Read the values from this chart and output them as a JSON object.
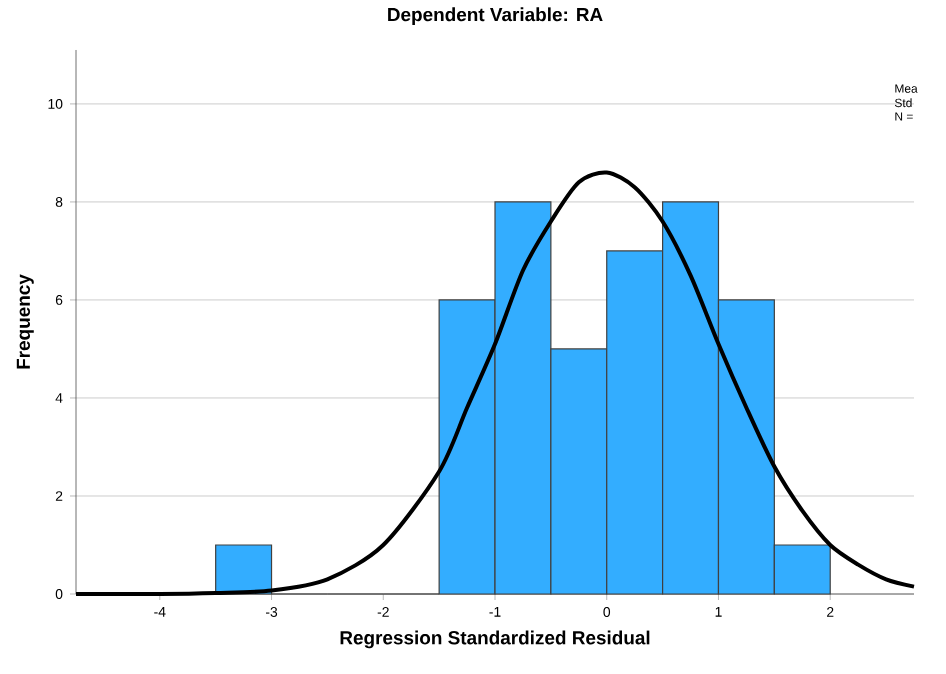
{
  "chart_data": {
    "type": "histogram",
    "title": "Dependent Variable: RA",
    "xlabel": "Regression Standardized Residual",
    "ylabel": "Frequency",
    "bins": [
      -3.5,
      -3,
      -2.5,
      -2,
      -1.5,
      -1,
      -0.5,
      0,
      0.5,
      1,
      1.5,
      2
    ],
    "values": [
      1,
      0,
      0,
      0,
      6,
      8,
      5,
      7,
      8,
      6,
      1
    ],
    "color": "#33adff",
    "series": [
      {
        "type": "line",
        "color": "#000000",
        "x": [
          -4.75,
          -4,
          -3.5,
          -3,
          -2.5,
          -2,
          -1.5,
          -1.25,
          -1,
          -0.75,
          -0.5,
          -0.25,
          0,
          0.25,
          0.5,
          0.75,
          1,
          1.25,
          1.5,
          1.75,
          2,
          2.25,
          2.5,
          2.75
        ],
        "values": [
          0,
          0,
          0.02,
          0.07,
          0.3,
          1.0,
          2.5,
          3.8,
          5.1,
          6.6,
          7.6,
          8.4,
          8.6,
          8.3,
          7.6,
          6.5,
          5.1,
          3.8,
          2.6,
          1.7,
          1.0,
          0.6,
          0.3,
          0.15
        ]
      }
    ],
    "xlim": [
      -4.75,
      2.75
    ],
    "ylim": [
      0,
      11.1
    ],
    "xticks": [
      -4,
      -3,
      -2,
      -1,
      0,
      1,
      2
    ],
    "yticks": [
      0,
      2,
      4,
      6,
      8,
      10
    ],
    "grid": "y",
    "annotations": [
      "Mea",
      "Std",
      "N ="
    ]
  }
}
